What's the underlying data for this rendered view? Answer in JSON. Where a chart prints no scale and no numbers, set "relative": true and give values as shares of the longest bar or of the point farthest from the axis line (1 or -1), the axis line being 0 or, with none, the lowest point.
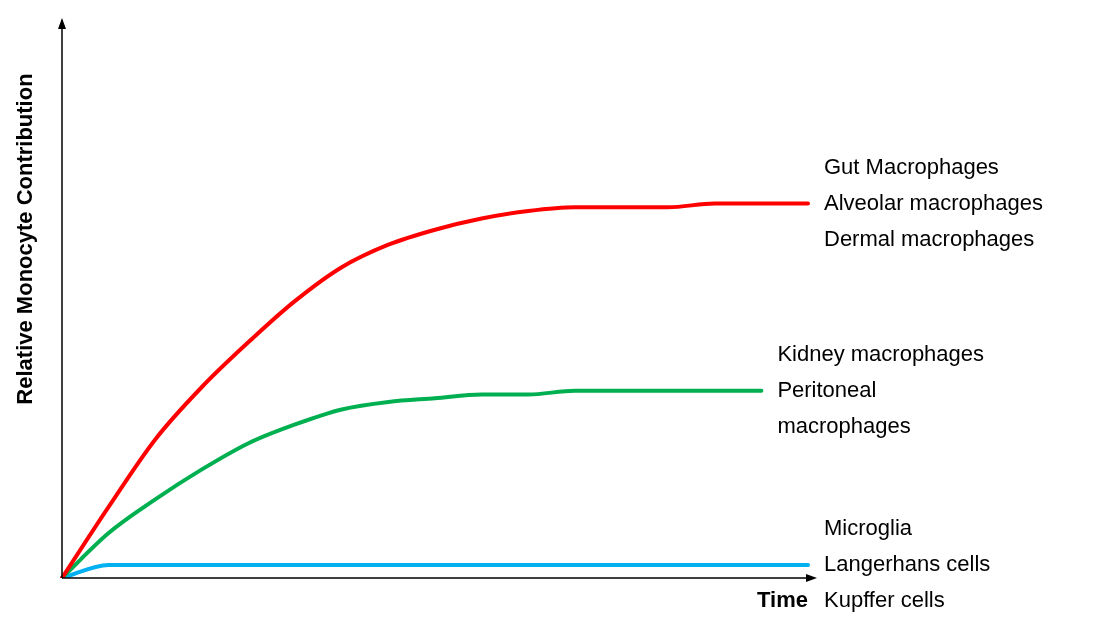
{
  "chart_data": {
    "type": "line",
    "relative": true,
    "xlabel": "Time",
    "ylabel": "Relative Monocyte Contribution",
    "legend": false,
    "marker": "none",
    "categories": [
      null,
      null,
      null,
      null,
      null,
      null,
      null,
      null,
      null,
      null,
      null,
      null,
      null,
      null,
      null,
      null,
      null
    ],
    "series": [
      {
        "name": "Gut Macrophages\nAlveolar macrophages\nDermal macrophages",
        "color": "#ff0000",
        "values": [
          0,
          0.19,
          0.37,
          0.51,
          0.63,
          0.74,
          0.83,
          0.89,
          0.93,
          0.96,
          0.98,
          0.99,
          0.99,
          0.99,
          1,
          1,
          1
        ]
      },
      {
        "name": "Kidney macrophages\nPeritoneal\nmacrophages",
        "color": "#00b050",
        "values": [
          0,
          0.12,
          0.21,
          0.29,
          0.36,
          0.41,
          0.45,
          0.47,
          0.48,
          0.49,
          0.49,
          0.5,
          0.5,
          0.5,
          0.5,
          0.5,
          null
        ]
      },
      {
        "name": "Microglia\nLangerhans cells\nKupffer cells",
        "color": "#00b0f0",
        "values": [
          0,
          0.035,
          0.035,
          0.035,
          0.035,
          0.035,
          0.035,
          0.035,
          0.035,
          0.035,
          0.035,
          0.035,
          0.035,
          0.035,
          0.035,
          0.035,
          0.035
        ]
      }
    ]
  }
}
